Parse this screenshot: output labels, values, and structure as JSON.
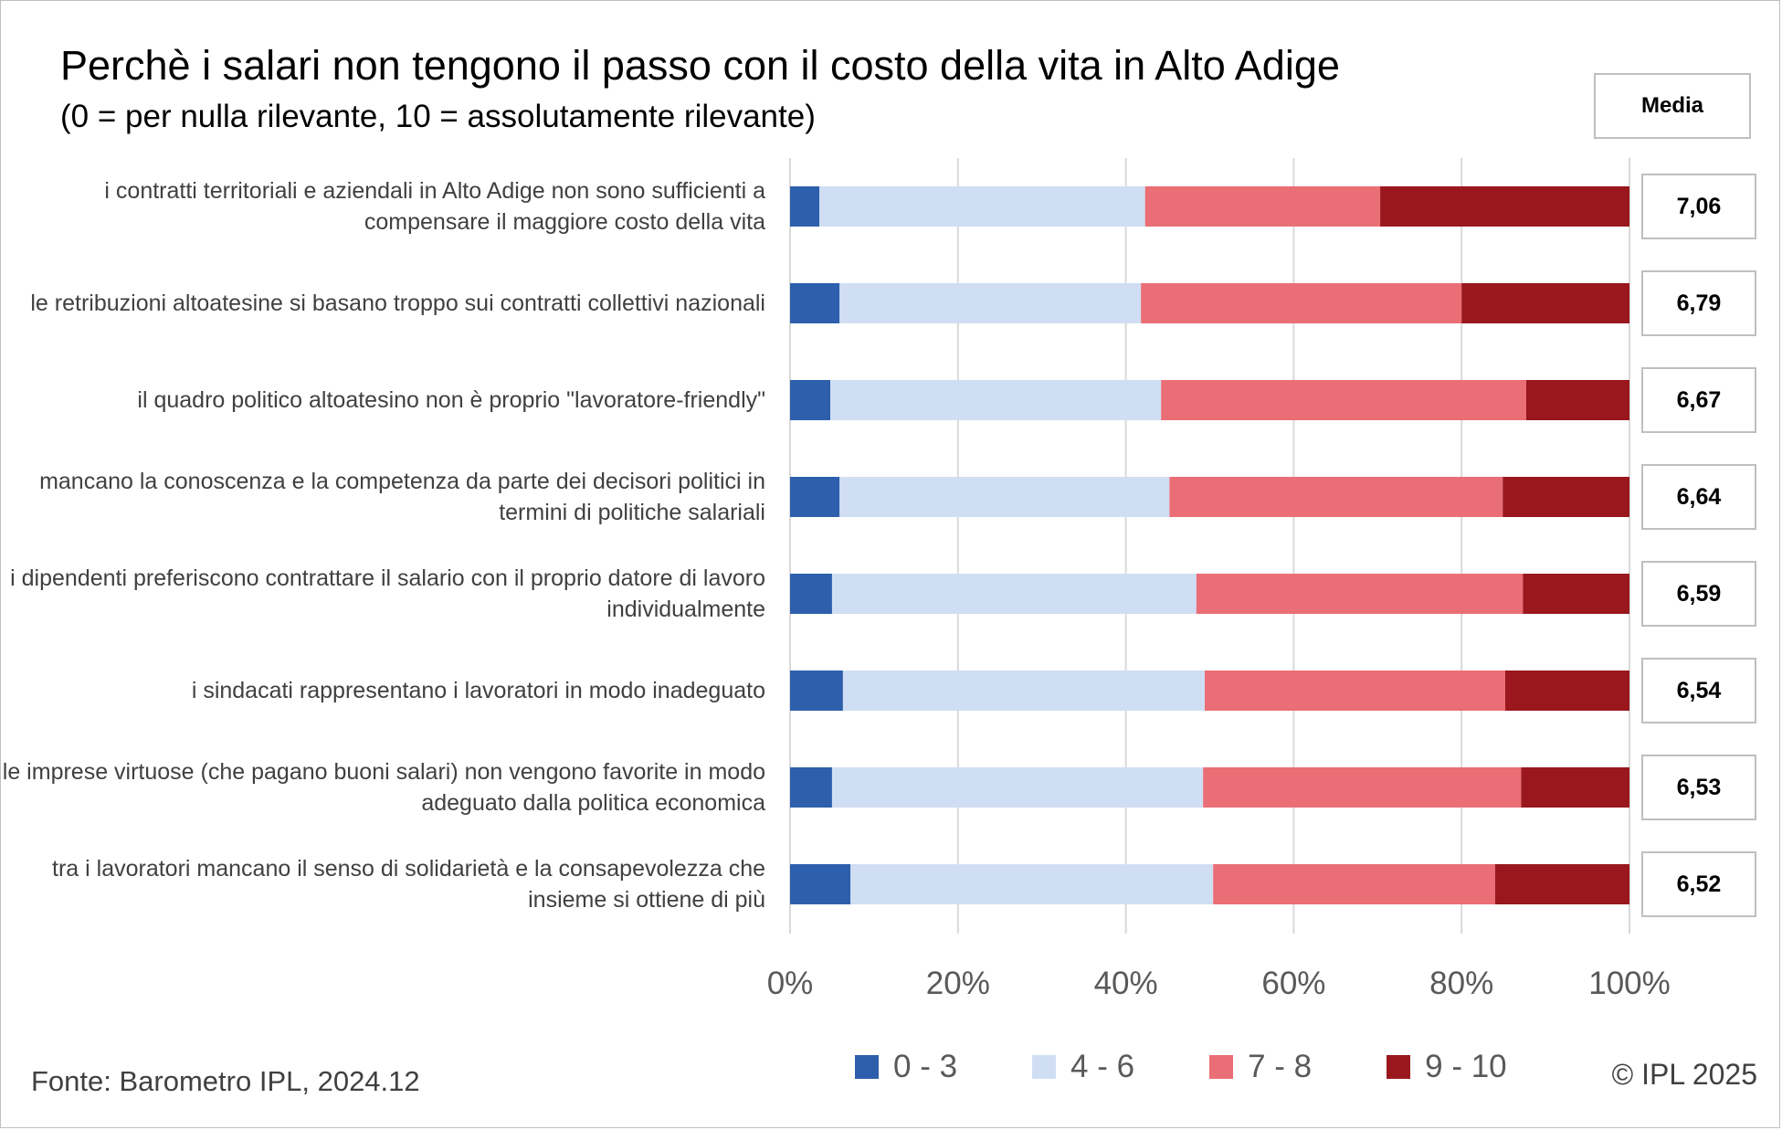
{
  "title": "Perchè i salari non tengono il passo con il costo della vita in Alto Adige",
  "subtitle": "(0 = per nulla rilevante, 10 = assolutamente rilevante)",
  "media_header": "Media",
  "source": "Fonte: Barometro IPL, 2024.12",
  "copyright": "© IPL 2025",
  "colors": {
    "0-3": "#2e5fac",
    "4-6": "#d0def4",
    "7-8": "#ea6e76",
    "9-10": "#9a171e",
    "grid": "#d9d9d9",
    "axis_text": "#595959"
  },
  "chart_data": {
    "type": "bar",
    "orientation": "horizontal",
    "stacked": true,
    "percent_stacked": true,
    "title": "Perchè i salari non tengono il passo con il costo della vita in Alto Adige",
    "subtitle": "(0 = per nulla rilevante, 10 = assolutamente rilevante)",
    "xlim": [
      0,
      100
    ],
    "x_ticks": [
      "0%",
      "20%",
      "40%",
      "60%",
      "80%",
      "100%"
    ],
    "grid": true,
    "legend_position": "bottom",
    "categories": [
      "i contratti territoriali e aziendali in Alto Adige non sono sufficienti a compensare il maggiore costo della vita",
      "le retribuzioni altoatesine si basano troppo sui contratti collettivi nazionali",
      "il quadro politico altoatesino non è proprio \"lavoratore-friendly\"",
      "mancano la conoscenza e la competenza da parte dei decisori politici in termini di politiche salariali",
      "i dipendenti preferiscono contrattare il salario con il proprio datore di lavoro individualmente",
      "i sindacati rappresentano i lavoratori in modo inadeguato",
      "le imprese virtuose (che pagano buoni salari) non vengono favorite in modo adeguato dalla politica economica",
      "tra i lavoratori mancano il senso di solidarietà e la consapevolezza che insieme si ottiene di più"
    ],
    "series": [
      {
        "name": "0 - 3",
        "color": "#2e5fac",
        "values": [
          3.5,
          5.9,
          4.8,
          5.9,
          5.0,
          6.3,
          5.0,
          7.2
        ]
      },
      {
        "name": "4 - 6",
        "color": "#d0def4",
        "values": [
          38.8,
          35.9,
          39.4,
          39.3,
          43.4,
          43.1,
          44.2,
          43.2
        ]
      },
      {
        "name": "7 - 8",
        "color": "#ea6e76",
        "values": [
          28.0,
          38.2,
          43.5,
          39.7,
          38.9,
          35.8,
          37.9,
          33.6
        ]
      },
      {
        "name": "9 - 10",
        "color": "#9a171e",
        "values": [
          29.7,
          20.0,
          12.3,
          15.1,
          12.7,
          14.8,
          12.9,
          16.0
        ]
      }
    ],
    "media": [
      "7,06",
      "6,79",
      "6,67",
      "6,64",
      "6,59",
      "6,54",
      "6,53",
      "6,52"
    ]
  }
}
